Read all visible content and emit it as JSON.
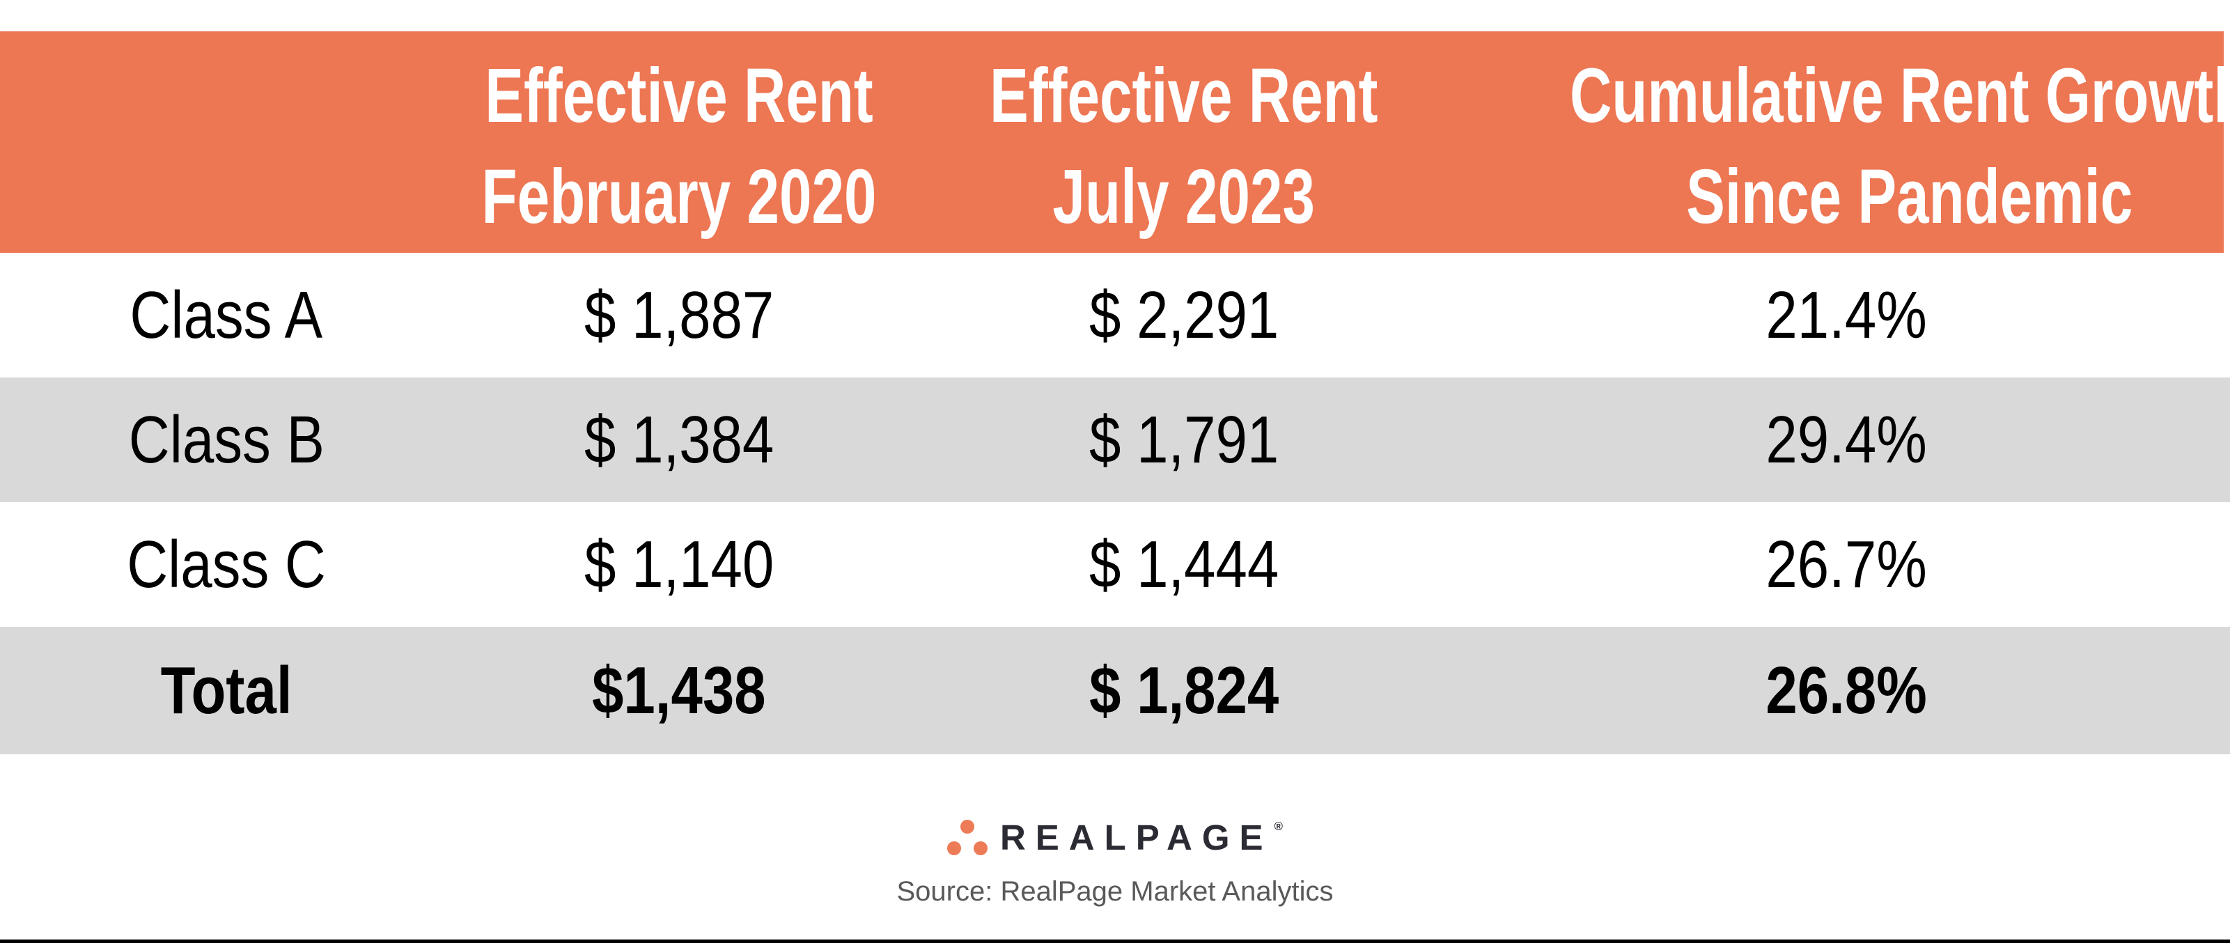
{
  "chart_data": {
    "type": "table",
    "columns": [
      "",
      "Effective Rent February 2020",
      "Effective Rent July 2023",
      "Cumulative Rent Growth Since Pandemic"
    ],
    "row_labels": [
      "Class A",
      "Class B",
      "Class C",
      "Total"
    ],
    "effective_rent_feb_2020": [
      1887,
      1384,
      1140,
      1438
    ],
    "effective_rent_jul_2023": [
      2291,
      1791,
      1444,
      1824
    ],
    "cumulative_rent_growth_pct": [
      21.4,
      29.4,
      26.7,
      26.8
    ],
    "source": "Source: RealPage Market Analytics",
    "layout": {
      "header_bg": "#ED7653",
      "alt_row_bg": "#D9D9D9",
      "grid": "off",
      "total_row_bold": true
    }
  },
  "header": {
    "col1_line1": "Effective Rent",
    "col1_line2": "February 2020",
    "col2_line1": "Effective Rent",
    "col2_line2": "July 2023",
    "col3_line1": "Cumulative Rent Growth",
    "col3_line2": "Since Pandemic"
  },
  "rows": [
    {
      "label": "Class A",
      "feb2020": "$ 1,887",
      "jul2023": "$ 2,291",
      "growth": "21.4%"
    },
    {
      "label": "Class B",
      "feb2020": "$ 1,384",
      "jul2023": "$ 1,791",
      "growth": "29.4%"
    },
    {
      "label": "Class C",
      "feb2020": "$ 1,140",
      "jul2023": "$ 1,444",
      "growth": "26.7%"
    },
    {
      "label": "Total",
      "feb2020": "$1,438",
      "jul2023": "$ 1,824",
      "growth": "26.8%"
    }
  ],
  "footer": {
    "brand": "REALPAGE",
    "registered_mark": "®",
    "source": "Source: RealPage Market Analytics"
  },
  "colors": {
    "header_bg": "#ED7653",
    "header_text": "#FFFFFF",
    "row_alt_bg": "#D9D9D9",
    "body_text": "#000000",
    "logo_dot": "#EE7B58",
    "logo_text": "#2B2B33",
    "source_text": "#595959",
    "bottom_rule": "#000000"
  }
}
